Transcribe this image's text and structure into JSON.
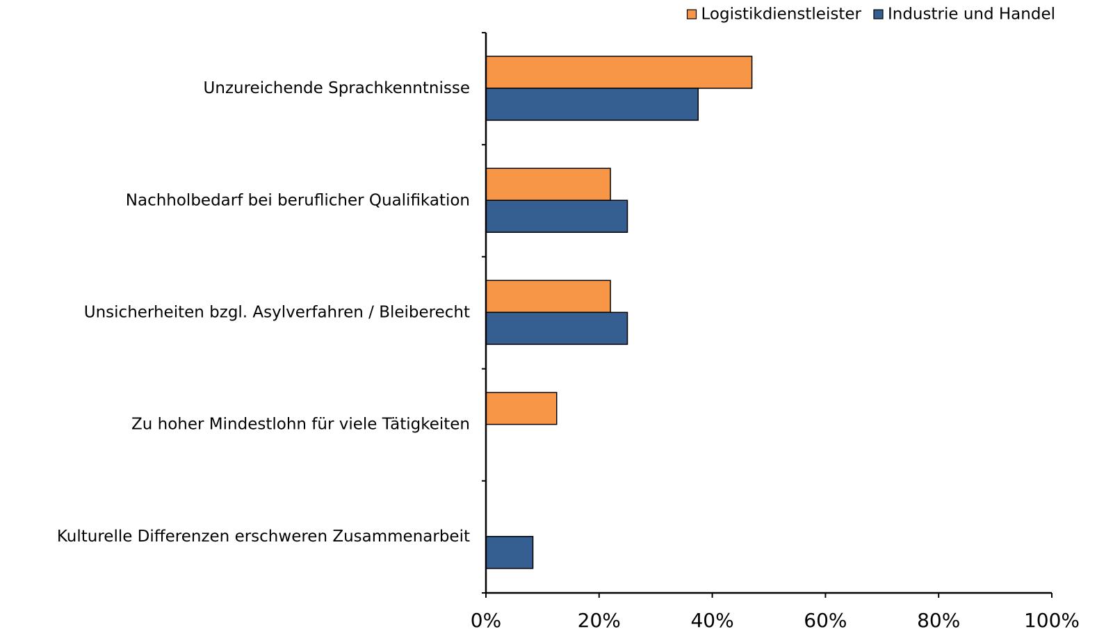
{
  "chart_data": {
    "type": "bar",
    "orientation": "horizontal",
    "categories": [
      "Unzureichende Sprachkenntnisse",
      "Nachholbedarf bei beruflicher Qualifikation",
      "Unsicherheiten bzgl. Asylverfahren / Bleiberecht",
      "Zu hoher Mindestlohn für viele Tätigkeiten",
      "Kulturelle Differenzen erschweren Zusammenarbeit"
    ],
    "series": [
      {
        "name": "Logistikdienstleister",
        "color": "#f79646",
        "values": [
          47,
          22,
          22,
          12.5,
          0
        ]
      },
      {
        "name": "Industrie und Handel",
        "color": "#365f91",
        "values": [
          37.5,
          25,
          25,
          0,
          8.3
        ]
      }
    ],
    "xlim": [
      0,
      100
    ],
    "xticks": [
      {
        "value": 0,
        "label": "0%"
      },
      {
        "value": 20,
        "label": "20%"
      },
      {
        "value": 40,
        "label": "40%"
      },
      {
        "value": 60,
        "label": "60%"
      },
      {
        "value": 80,
        "label": "80%"
      },
      {
        "value": 100,
        "label": "100%"
      }
    ],
    "legend": "top-right"
  }
}
